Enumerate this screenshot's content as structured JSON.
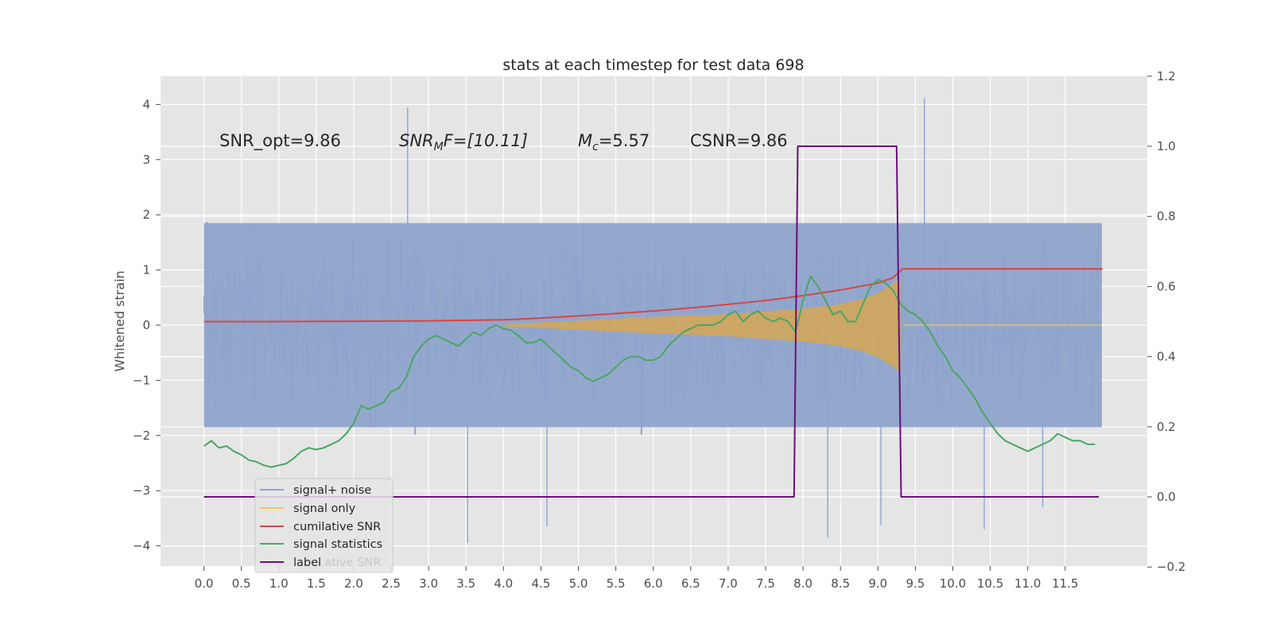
{
  "chart_data": {
    "type": "line",
    "title": "stats at each timestep for test data 698",
    "ylabel": "Whitened strain",
    "xlabel": "",
    "xlim": [
      -0.5,
      12.5
    ],
    "ylim": [
      -4.4,
      4.5
    ],
    "y2lim": [
      -0.2,
      1.2
    ],
    "grid": true,
    "x_ticks": [
      "0.0",
      "0.5",
      "1.0",
      "1.5",
      "2.0",
      "2.5",
      "3.0",
      "3.5",
      "4.0",
      "4.5",
      "5.0",
      "5.5",
      "6.0",
      "6.5",
      "7.0",
      "7.5",
      "8.0",
      "8.5",
      "9.0",
      "9.5",
      "10.0",
      "10.5",
      "11.0",
      "11.5"
    ],
    "y_ticks": [
      "4",
      "3",
      "2",
      "1",
      "0",
      "−1",
      "−2",
      "−3",
      "−4"
    ],
    "y2_ticks": [
      "1.2",
      "1.0",
      "0.8",
      "0.6",
      "0.4",
      "0.2",
      "0.0",
      "−0.2"
    ],
    "annotations": {
      "snr_opt": "SNR_opt=9.86",
      "snr_mf_sym": "SNR",
      "snr_mf_sub": "M",
      "snr_mf_rest": "F=[10.11]",
      "mc_sym": "M",
      "mc_sub": "c",
      "mc_rest": "=5.57",
      "csnr": "CSNR=9.86"
    },
    "legend": {
      "placement": "lower-left",
      "entries": [
        {
          "label": "signal+ noise",
          "color": "#8fa4cc"
        },
        {
          "label": "signal only",
          "color": "#f2c45a"
        },
        {
          "label": "cumilative SNR",
          "color": "#d64545"
        },
        {
          "label": "signal statistics",
          "color": "#4aa564"
        },
        {
          "label": "label",
          "color": "#6a0f78"
        }
      ],
      "ghost_text": "cumilative SNR"
    },
    "series": [
      {
        "name": "signal+ noise",
        "axis": "left",
        "color": "#8fa4cc",
        "description": "dense whitened noise, mostly between -2.5 and 2.5",
        "peaks": [
          [
            2.72,
            3.95
          ],
          [
            9.62,
            4.12
          ],
          [
            3.52,
            -3.95
          ],
          [
            8.33,
            -3.85
          ],
          [
            9.04,
            -3.62
          ],
          [
            4.58,
            -3.65
          ],
          [
            10.42,
            -3.7
          ],
          [
            11.2,
            -3.3
          ]
        ]
      },
      {
        "name": "signal only",
        "axis": "left",
        "color": "#f2c45a",
        "envelope": {
          "x": [
            4.0,
            5.0,
            6.0,
            7.0,
            7.5,
            8.0,
            8.5,
            8.8,
            9.0,
            9.2,
            9.3
          ],
          "amp": [
            0.02,
            0.08,
            0.15,
            0.2,
            0.25,
            0.3,
            0.38,
            0.48,
            0.58,
            0.75,
            0.85
          ]
        }
      },
      {
        "name": "cumilative SNR",
        "axis": "right",
        "color": "#d64545",
        "x": [
          0,
          1,
          2,
          3,
          4,
          4.5,
          5,
          5.5,
          6,
          6.5,
          7,
          7.5,
          8,
          8.5,
          9,
          9.2,
          9.33,
          12
        ],
        "y": [
          0.5,
          0.5,
          0.501,
          0.502,
          0.505,
          0.51,
          0.516,
          0.523,
          0.53,
          0.539,
          0.549,
          0.56,
          0.574,
          0.59,
          0.61,
          0.625,
          0.65,
          0.65
        ]
      },
      {
        "name": "signal statistics",
        "axis": "right",
        "color": "#4aa564",
        "x": [
          0,
          0.1,
          0.2,
          0.3,
          0.4,
          0.5,
          0.6,
          0.7,
          0.8,
          0.9,
          1.0,
          1.1,
          1.2,
          1.3,
          1.4,
          1.5,
          1.6,
          1.7,
          1.8,
          1.9,
          2.0,
          2.1,
          2.2,
          2.3,
          2.4,
          2.5,
          2.6,
          2.7,
          2.8,
          2.9,
          3.0,
          3.1,
          3.2,
          3.3,
          3.4,
          3.5,
          3.6,
          3.7,
          3.8,
          3.9,
          4.0,
          4.1,
          4.2,
          4.3,
          4.4,
          4.5,
          4.6,
          4.7,
          4.8,
          4.9,
          5.0,
          5.1,
          5.2,
          5.3,
          5.4,
          5.5,
          5.6,
          5.7,
          5.8,
          5.9,
          6.0,
          6.1,
          6.2,
          6.3,
          6.4,
          6.5,
          6.6,
          6.7,
          6.8,
          6.9,
          7.0,
          7.1,
          7.2,
          7.3,
          7.4,
          7.5,
          7.6,
          7.7,
          7.8,
          7.9,
          8.0,
          8.1,
          8.2,
          8.3,
          8.4,
          8.5,
          8.6,
          8.7,
          8.8,
          8.9,
          9.0,
          9.1,
          9.2,
          9.3,
          9.4,
          9.5,
          9.6,
          9.7,
          9.8,
          9.9,
          10.0,
          10.1,
          10.2,
          10.3,
          10.4,
          10.5,
          10.6,
          10.7,
          10.8,
          10.9,
          11.0,
          11.1,
          11.2,
          11.3,
          11.4,
          11.5,
          11.6,
          11.7,
          11.8,
          11.9
        ],
        "y": [
          0.145,
          0.16,
          0.14,
          0.145,
          0.13,
          0.12,
          0.105,
          0.1,
          0.09,
          0.085,
          0.09,
          0.095,
          0.11,
          0.13,
          0.14,
          0.135,
          0.14,
          0.15,
          0.16,
          0.18,
          0.21,
          0.26,
          0.25,
          0.26,
          0.27,
          0.3,
          0.31,
          0.34,
          0.4,
          0.43,
          0.45,
          0.46,
          0.45,
          0.44,
          0.43,
          0.45,
          0.47,
          0.46,
          0.48,
          0.49,
          0.48,
          0.475,
          0.46,
          0.44,
          0.44,
          0.45,
          0.43,
          0.41,
          0.39,
          0.37,
          0.36,
          0.34,
          0.33,
          0.34,
          0.35,
          0.37,
          0.39,
          0.4,
          0.4,
          0.39,
          0.39,
          0.4,
          0.43,
          0.45,
          0.47,
          0.48,
          0.49,
          0.49,
          0.49,
          0.5,
          0.52,
          0.53,
          0.5,
          0.52,
          0.53,
          0.51,
          0.5,
          0.51,
          0.5,
          0.47,
          0.56,
          0.63,
          0.6,
          0.56,
          0.52,
          0.53,
          0.5,
          0.5,
          0.55,
          0.6,
          0.62,
          0.61,
          0.59,
          0.55,
          0.53,
          0.52,
          0.5,
          0.47,
          0.43,
          0.4,
          0.36,
          0.34,
          0.31,
          0.28,
          0.24,
          0.21,
          0.18,
          0.16,
          0.15,
          0.14,
          0.13,
          0.14,
          0.15,
          0.16,
          0.18,
          0.17,
          0.16,
          0.16,
          0.15,
          0.15
        ]
      },
      {
        "name": "label",
        "axis": "right",
        "color": "#6a0f78",
        "x": [
          0,
          7.88,
          7.93,
          9.25,
          9.31,
          11.95
        ],
        "y": [
          0,
          0,
          1,
          1,
          0,
          0
        ]
      }
    ]
  }
}
